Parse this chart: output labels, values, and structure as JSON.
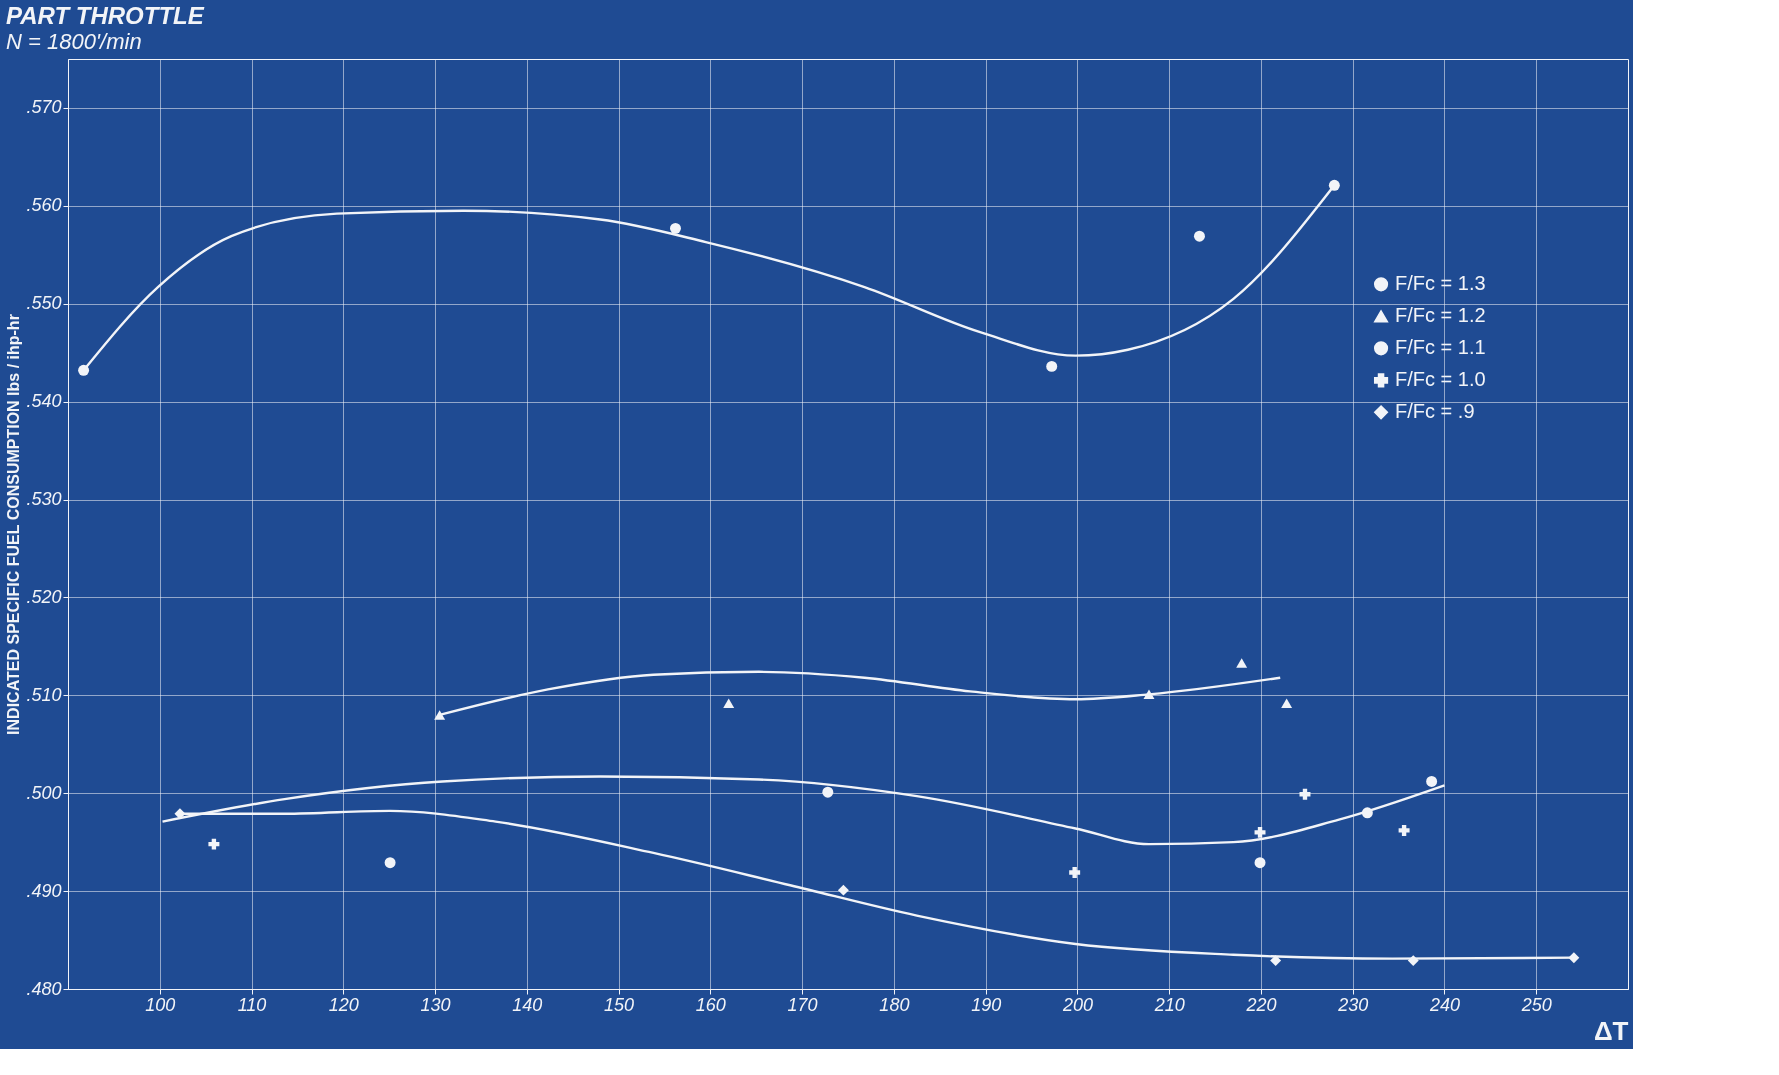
{
  "chart_data": {
    "type": "scatter",
    "title": "PART THROTTLE",
    "subtitle": "N = 1800'/min",
    "xlabel": "ΔT",
    "ylabel": "INDICATED SPECIFIC FUEL CONSUMPTION  lbs / ihp-hr",
    "xlim": [
      90,
      260
    ],
    "xticks": [
      100,
      110,
      120,
      130,
      140,
      150,
      160,
      170,
      180,
      190,
      200,
      210,
      220,
      230,
      240,
      250
    ],
    "ylim": [
      0.48,
      0.575
    ],
    "yticks": [
      {
        "value": 0.48,
        "label": ".480"
      },
      {
        "value": 0.49,
        "label": ".490"
      },
      {
        "value": 0.5,
        "label": ".500"
      },
      {
        "value": 0.51,
        "label": ".510"
      },
      {
        "value": 0.52,
        "label": ".520"
      },
      {
        "value": 0.53,
        "label": ".530"
      },
      {
        "value": 0.54,
        "label": ".540"
      },
      {
        "value": 0.55,
        "label": ".550"
      },
      {
        "value": 0.56,
        "label": ".560"
      },
      {
        "value": 0.57,
        "label": ".570"
      }
    ],
    "grid": true,
    "legend": "right",
    "series": [
      {
        "name": "F/Fc = 1.3",
        "marker": "circle",
        "color": "#f2f4f8",
        "x": [
          91.7,
          156.2,
          197.2,
          213.3,
          228.0
        ],
        "values": [
          0.5432,
          0.5577,
          0.5436,
          0.5569,
          0.5621
        ]
      },
      {
        "name": "F/Fc = 1.2",
        "marker": "triangle",
        "color": "#f2f4f8",
        "x": [
          130.5,
          162.0,
          207.8,
          217.9,
          222.8
        ],
        "values": [
          0.508,
          0.5092,
          0.5101,
          0.5133,
          0.5092
        ]
      },
      {
        "name": "F/Fc = 1.1",
        "marker": "circle",
        "color": "#f2f4f8",
        "x": [
          125.1,
          172.8,
          219.9,
          231.6,
          238.6
        ],
        "values": [
          0.4929,
          0.5001,
          0.4929,
          0.498,
          0.5012
        ]
      },
      {
        "name": "F/Fc = 1.0",
        "marker": "cross",
        "color": "#f2f4f8",
        "x": [
          105.9,
          199.7,
          219.9,
          224.8,
          235.6
        ],
        "values": [
          0.4948,
          0.4919,
          0.496,
          0.4999,
          0.4962
        ]
      },
      {
        "name": "F/Fc = .9",
        "marker": "diamond",
        "color": "#f2f4f8",
        "x": [
          102.2,
          174.5,
          221.6,
          236.6,
          254.1
        ],
        "values": [
          0.4979,
          0.4901,
          0.4829,
          0.4829,
          0.4832
        ]
      },
      {
        "type": "line",
        "color": "#f2f4f8",
        "x": [
          91.7,
          99.8,
          107.8,
          119.3,
          133.1,
          148.0,
          159.5,
          176.8,
          189.4,
          199.8,
          205.5,
          217.0,
          228.0
        ],
        "values": [
          0.5432,
          0.5517,
          0.5569,
          0.5592,
          0.5595,
          0.5586,
          0.5563,
          0.5517,
          0.5471,
          0.5447,
          0.5453,
          0.5505,
          0.5621
        ]
      },
      {
        "type": "line",
        "color": "#f2f4f8",
        "x": [
          130.5,
          142.3,
          153.8,
          165.3,
          176.8,
          188.3,
          199.8,
          207.8,
          222.1
        ],
        "values": [
          0.508,
          0.5106,
          0.5121,
          0.5124,
          0.5118,
          0.5104,
          0.5096,
          0.5101,
          0.5118
        ]
      },
      {
        "type": "line",
        "color": "#f2f4f8",
        "x": [
          100.3,
          113.6,
          130.8,
          148.0,
          165.3,
          182.5,
          199.8,
          207.8,
          217.0,
          228.5,
          240.0
        ],
        "values": [
          0.4971,
          0.4994,
          0.5012,
          0.5017,
          0.5014,
          0.4997,
          0.4964,
          0.4948,
          0.495,
          0.4973,
          0.5008
        ]
      },
      {
        "type": "line",
        "color": "#f2f4f8",
        "x": [
          102.2,
          113.6,
          125.1,
          136.6,
          153.8,
          168.7,
          182.5,
          199.8,
          217.0,
          234.3,
          254.1
        ],
        "values": [
          0.4979,
          0.4979,
          0.4982,
          0.4971,
          0.4939,
          0.4906,
          0.4875,
          0.4846,
          0.4835,
          0.4831,
          0.4832
        ]
      }
    ]
  }
}
